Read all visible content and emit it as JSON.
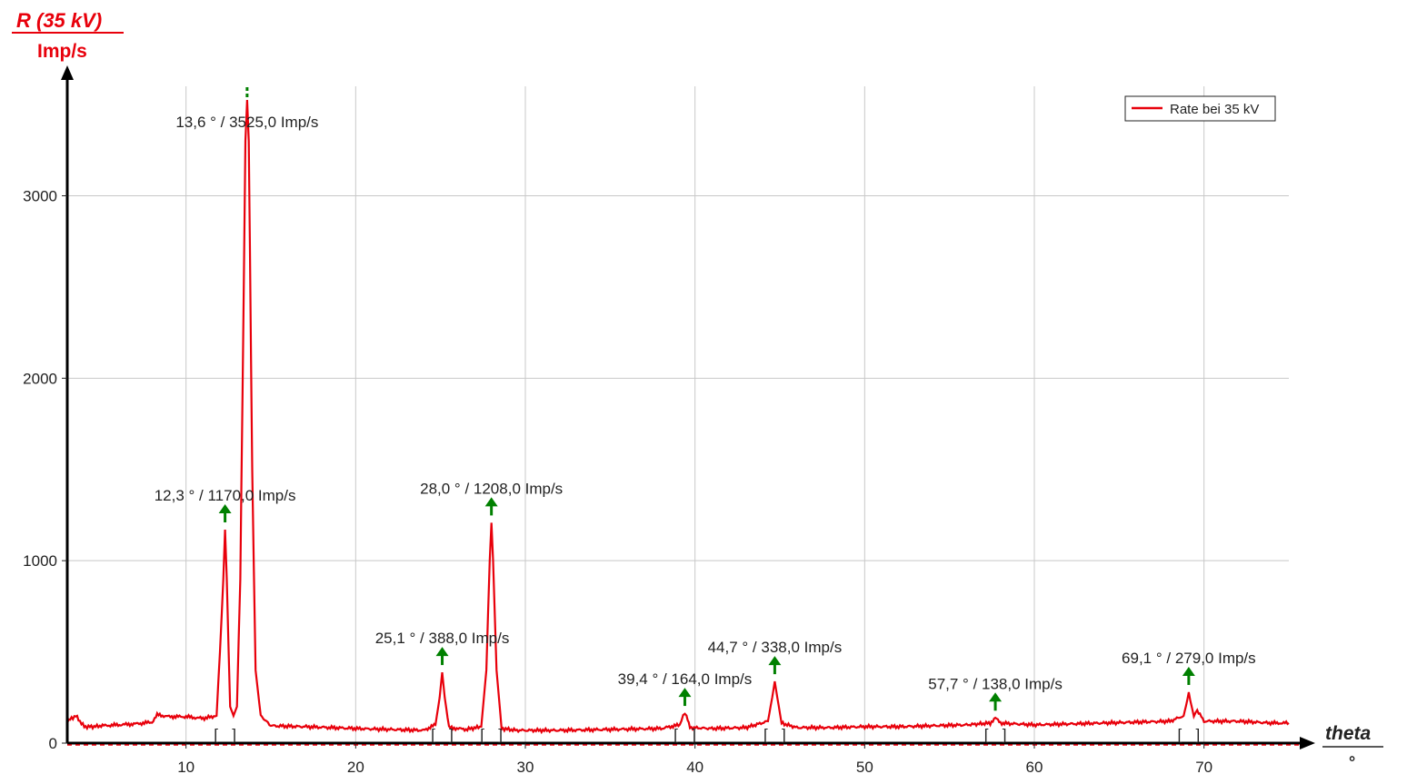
{
  "chart_data": {
    "type": "line",
    "ylabel": "R (35 kV)",
    "yunit": "Imp/s",
    "xlabel": "theta",
    "xunit": "°",
    "xlim": [
      3,
      75
    ],
    "ylim": [
      0,
      3500
    ],
    "xticks": [
      10,
      20,
      30,
      40,
      50,
      60,
      70
    ],
    "yticks": [
      0,
      1000,
      2000,
      3000
    ],
    "grid": true,
    "legend": {
      "position": "top-right",
      "entries": [
        "Rate bei 35 kV"
      ]
    },
    "colors": {
      "series": "#e8000b",
      "marker": "#008000",
      "grid": "#c8c8c8"
    },
    "series": [
      {
        "name": "Rate bei 35 kV",
        "x": [
          3.0,
          3.5,
          4.0,
          4.5,
          5.0,
          6.0,
          7.0,
          8.0,
          8.3,
          9.0,
          10.0,
          11.0,
          11.8,
          12.0,
          12.2,
          12.3,
          12.4,
          12.6,
          12.8,
          13.0,
          13.2,
          13.4,
          13.5,
          13.6,
          13.7,
          13.9,
          14.1,
          14.4,
          15.0,
          17.0,
          20.0,
          22.0,
          24.0,
          24.7,
          24.95,
          25.1,
          25.25,
          25.5,
          26.5,
          27.4,
          27.7,
          27.9,
          28.0,
          28.1,
          28.3,
          28.6,
          29.5,
          32.0,
          35.0,
          38.0,
          39.1,
          39.3,
          39.4,
          39.5,
          39.7,
          41.0,
          43.0,
          44.3,
          44.55,
          44.7,
          44.85,
          45.1,
          46.0,
          48.0,
          50.0,
          52.0,
          54.0,
          56.0,
          57.4,
          57.7,
          58.0,
          60.0,
          62.0,
          64.0,
          66.0,
          68.0,
          68.8,
          69.0,
          69.1,
          69.2,
          69.4,
          69.6,
          70.0,
          72.0,
          74.0,
          75.0
        ],
        "y": [
          120,
          150,
          90,
          90,
          95,
          100,
          105,
          115,
          155,
          145,
          145,
          135,
          150,
          500,
          900,
          1170,
          900,
          200,
          150,
          200,
          900,
          2450,
          3300,
          3525,
          3300,
          1500,
          400,
          150,
          95,
          90,
          80,
          75,
          70,
          100,
          250,
          388,
          250,
          85,
          75,
          90,
          400,
          1000,
          1208,
          1000,
          400,
          80,
          70,
          70,
          75,
          80,
          100,
          150,
          164,
          150,
          85,
          80,
          85,
          120,
          250,
          338,
          250,
          110,
          85,
          85,
          90,
          90,
          95,
          100,
          110,
          138,
          110,
          100,
          105,
          110,
          115,
          120,
          150,
          230,
          279,
          230,
          150,
          180,
          120,
          120,
          110,
          110
        ]
      }
    ],
    "peaks": [
      {
        "x": 12.3,
        "y": 1170,
        "label": "12,3 ° / 1170,0 Imp/s"
      },
      {
        "x": 13.6,
        "y": 3525,
        "label": "13,6 ° / 3525,0 Imp/s"
      },
      {
        "x": 25.1,
        "y": 388,
        "label": "25,1 ° / 388,0 Imp/s"
      },
      {
        "x": 28.0,
        "y": 1208,
        "label": "28,0 ° / 1208,0 Imp/s"
      },
      {
        "x": 39.4,
        "y": 164,
        "label": "39,4 ° / 164,0 Imp/s"
      },
      {
        "x": 44.7,
        "y": 338,
        "label": "44,7 ° / 338,0 Imp/s"
      },
      {
        "x": 57.7,
        "y": 138,
        "label": "57,7 ° / 138,0 Imp/s"
      },
      {
        "x": 69.1,
        "y": 279,
        "label": "69,1 ° / 279,0 Imp/s"
      }
    ]
  }
}
